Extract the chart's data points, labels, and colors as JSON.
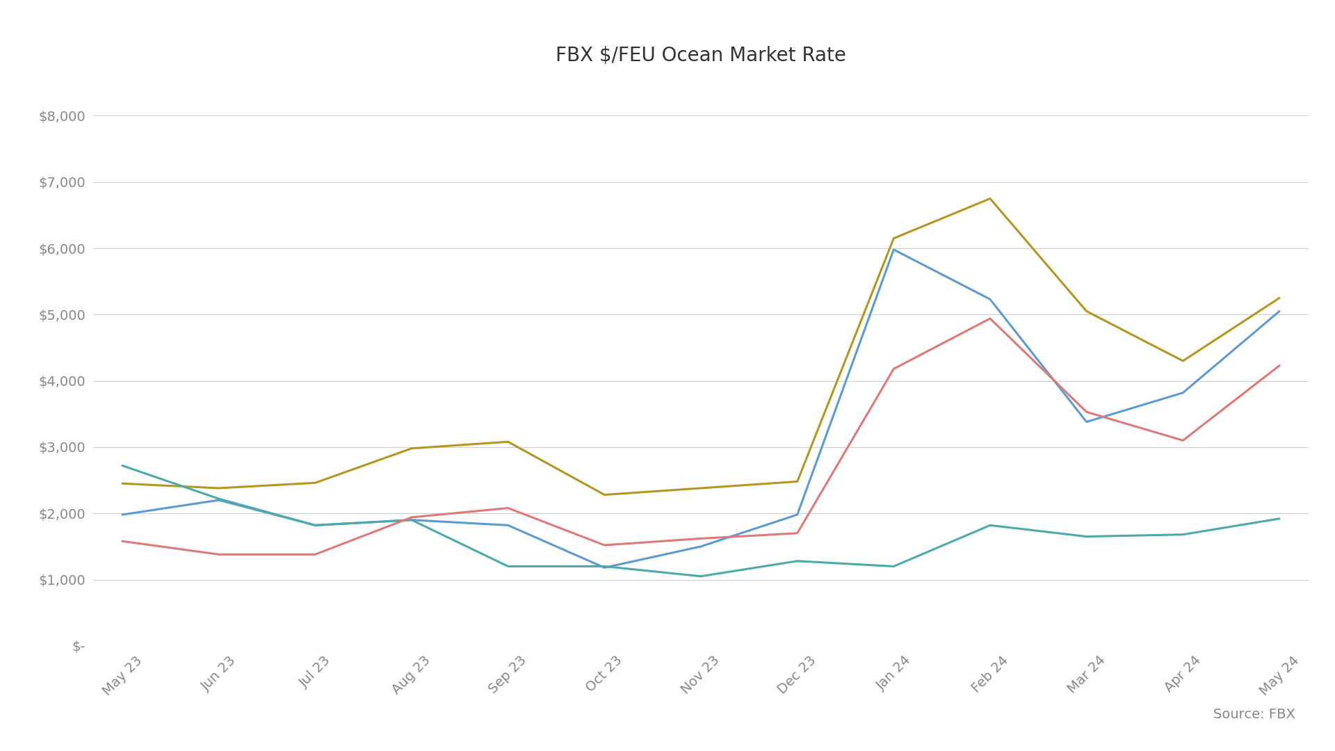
{
  "title": "FBX $/FEU Ocean Market Rate",
  "source": "Source: FBX",
  "x_labels": [
    "May 23",
    "Jun 23",
    "Jul 23",
    "Aug 23",
    "Sep 23",
    "Oct 23",
    "Nov 23",
    "Dec 23",
    "Jan 24",
    "Feb 24",
    "Mar 24",
    "Apr 24",
    "May 24"
  ],
  "series": {
    "CN-USEC": {
      "color": "#b5961e",
      "values": [
        2450,
        2380,
        2460,
        2980,
        3080,
        2280,
        2380,
        2480,
        6150,
        6750,
        5050,
        4300,
        5250
      ]
    },
    "CN-EU": {
      "color": "#5b9bd5",
      "values": [
        1980,
        2200,
        1820,
        1900,
        1820,
        1180,
        1500,
        1980,
        5980,
        5230,
        3380,
        3820,
        5050
      ]
    },
    "EU-US": {
      "color": "#4aabaa",
      "values": [
        2720,
        2220,
        1820,
        1900,
        1200,
        1200,
        1050,
        1280,
        1200,
        1820,
        1650,
        1680,
        1920
      ]
    },
    "CN-USWC": {
      "color": "#e07878",
      "values": [
        1580,
        1380,
        1380,
        1940,
        2080,
        1520,
        1620,
        1700,
        4180,
        4940,
        3530,
        3100,
        4230
      ]
    }
  },
  "ylim": [
    0,
    8500
  ],
  "yticks": [
    0,
    1000,
    2000,
    3000,
    4000,
    5000,
    6000,
    7000,
    8000
  ],
  "ytick_labels": [
    "$-",
    "$1,000",
    "$2,000",
    "$3,000",
    "$4,000",
    "$5,000",
    "$6,000",
    "$7,000",
    "$8,000"
  ],
  "background_color": "#ffffff",
  "grid_color": "#d0d0d0",
  "title_fontsize": 20,
  "legend_fontsize": 14,
  "tick_fontsize": 14,
  "line_width": 2.2
}
